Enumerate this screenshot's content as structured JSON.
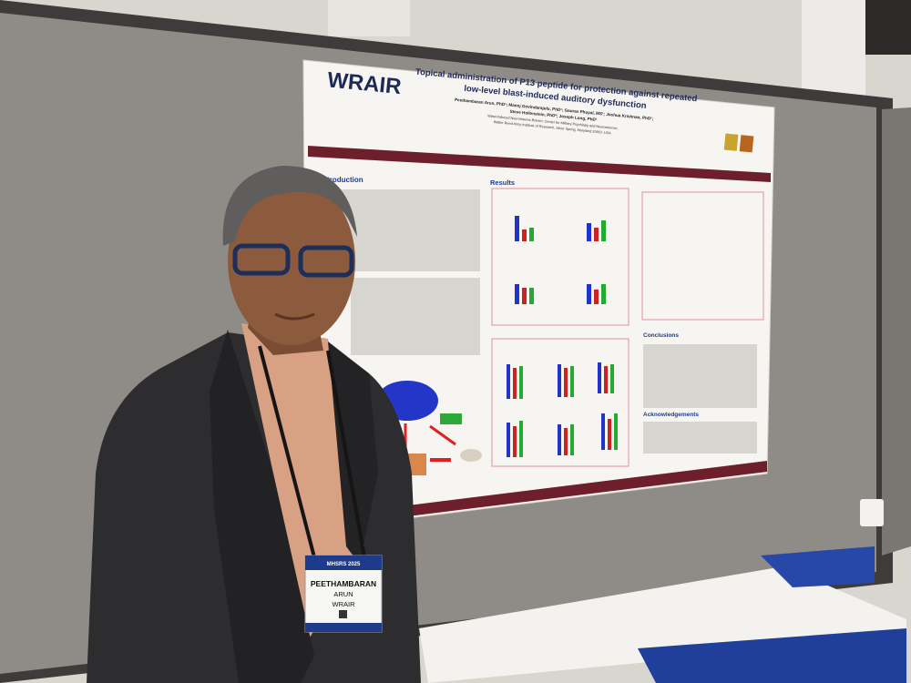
{
  "poster": {
    "logo": "WRAIR",
    "title_line_1": "Topical administration of P13 peptide for protection against repeated",
    "title_line_2": "low-level blast-induced auditory dysfunction",
    "authors_line_1": "Peethambaran Arun, PhD¹; Manoj Govindarajulu, PhD¹; Gaurav Phuyal, MS¹; Joshua Krishnan, PhD¹;",
    "authors_line_2": "Steve Hollenstein, PhD²; Joseph Long, PhD¹",
    "affiliation_1": "¹Blast-Induced Neurotrauma Branch, Center for Military Psychiatry and Neuroscience,",
    "affiliation_2": "Walter Reed Army Institute of Research, Silver Spring, Maryland 20910, USA",
    "section_introduction": "Introduction",
    "section_results": "Results",
    "section_conclusions": "Conclusions",
    "section_acknowledgements": "Acknowledgements"
  },
  "badge": {
    "event": "MHSRS 2025",
    "first_name": "PEETHAMBARAN",
    "last_name": "ARUN",
    "organization": "WRAIR"
  }
}
